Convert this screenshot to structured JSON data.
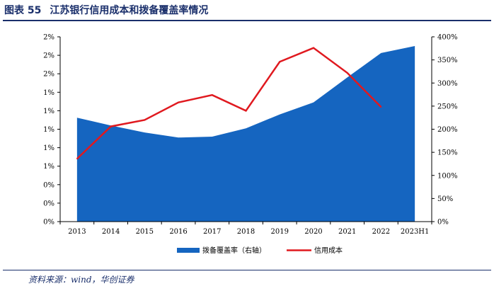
{
  "figure": {
    "number": "图表 55",
    "title": "江苏银行信用成本和拨备覆盖率情况",
    "source": "资料来源：wind，华创证券"
  },
  "colors": {
    "title": "#1a2f6b",
    "area": "#1565c0",
    "line": "#e0191f",
    "axis": "#000000"
  },
  "chart_data": {
    "type": "area",
    "categories": [
      "2013",
      "2014",
      "2015",
      "2016",
      "2017",
      "2018",
      "2019",
      "2020",
      "2021",
      "2022",
      "2023H1"
    ],
    "left_axis": {
      "ylim": [
        0,
        2.0
      ],
      "ticks": [
        0,
        0.2,
        0.4,
        0.6,
        0.8,
        1.0,
        1.2,
        1.4,
        1.6,
        1.8,
        2.0
      ],
      "tick_labels": [
        "0%",
        "0%",
        "0%",
        "1%",
        "1%",
        "1%",
        "1%",
        "1%",
        "2%",
        "2%",
        "2%"
      ]
    },
    "right_axis": {
      "ylim": [
        0,
        400
      ],
      "ticks": [
        0,
        50,
        100,
        150,
        200,
        250,
        300,
        350,
        400
      ],
      "tick_labels": [
        "0%",
        "50%",
        "100%",
        "150%",
        "200%",
        "250%",
        "300%",
        "350%",
        "400%"
      ]
    },
    "series": [
      {
        "name": "拨备覆盖率（右轴）",
        "type": "area",
        "axis": "right",
        "values": [
          225,
          208,
          193,
          182,
          184,
          202,
          232,
          258,
          312,
          365,
          380
        ]
      },
      {
        "name": "信用成本",
        "type": "line",
        "axis": "left",
        "values": [
          0.68,
          1.03,
          1.1,
          1.29,
          1.37,
          1.2,
          1.73,
          1.88,
          1.61,
          1.24,
          null
        ]
      }
    ],
    "legend": "bottom-center",
    "grid": false
  }
}
